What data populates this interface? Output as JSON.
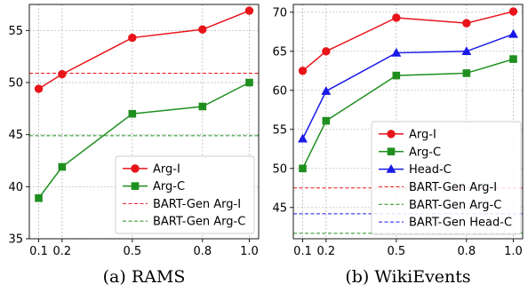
{
  "chart_data": [
    {
      "type": "line",
      "caption": "(a) RAMS",
      "x": [
        0.1,
        0.2,
        0.5,
        0.8,
        1.0
      ],
      "x_ticks": [
        "0.1",
        "0.2",
        "0.5",
        "0.8",
        "1.0"
      ],
      "xlim": [
        0.06,
        1.04
      ],
      "ylim": [
        35,
        57.5
      ],
      "y_ticks": [
        35,
        40,
        45,
        50,
        55
      ],
      "grid": true,
      "legend_position": "lower-right",
      "series": [
        {
          "name": "Arg-I",
          "color": "#e8141a",
          "marker": "circle",
          "values": [
            49.4,
            50.8,
            54.3,
            55.1,
            56.9
          ]
        },
        {
          "name": "Arg-C",
          "color": "#1f8f1f",
          "marker": "square",
          "values": [
            38.9,
            41.9,
            47.0,
            47.7,
            50.0
          ]
        }
      ],
      "baselines": [
        {
          "name": "BART-Gen Arg-I",
          "color": "#e8141a",
          "value": 50.9
        },
        {
          "name": "BART-Gen Arg-C",
          "color": "#1f8f1f",
          "value": 44.9
        }
      ]
    },
    {
      "type": "line",
      "caption": "(b) WikiEvents",
      "x": [
        0.1,
        0.2,
        0.5,
        0.8,
        1.0
      ],
      "x_ticks": [
        "0.1",
        "0.2",
        "0.5",
        "0.8",
        "1.0"
      ],
      "xlim": [
        0.06,
        1.04
      ],
      "ylim": [
        41,
        71
      ],
      "y_ticks": [
        45,
        50,
        55,
        60,
        65,
        70
      ],
      "grid": true,
      "legend_position": "lower-right",
      "series": [
        {
          "name": "Arg-I",
          "color": "#e8141a",
          "marker": "circle",
          "values": [
            62.5,
            65.0,
            69.3,
            68.6,
            70.1
          ]
        },
        {
          "name": "Arg-C",
          "color": "#1f8f1f",
          "marker": "square",
          "values": [
            50.0,
            56.1,
            61.9,
            62.2,
            64.0
          ]
        },
        {
          "name": "Head-C",
          "color": "#1a1ae8",
          "marker": "triangle",
          "values": [
            53.8,
            59.9,
            64.8,
            65.0,
            67.2
          ]
        }
      ],
      "baselines": [
        {
          "name": "BART-Gen Arg-I",
          "color": "#e8141a",
          "value": 47.5
        },
        {
          "name": "BART-Gen Arg-C",
          "color": "#1f8f1f",
          "value": 41.7
        },
        {
          "name": "BART-Gen Head-C",
          "color": "#1a1ae8",
          "value": 44.2
        }
      ]
    }
  ]
}
